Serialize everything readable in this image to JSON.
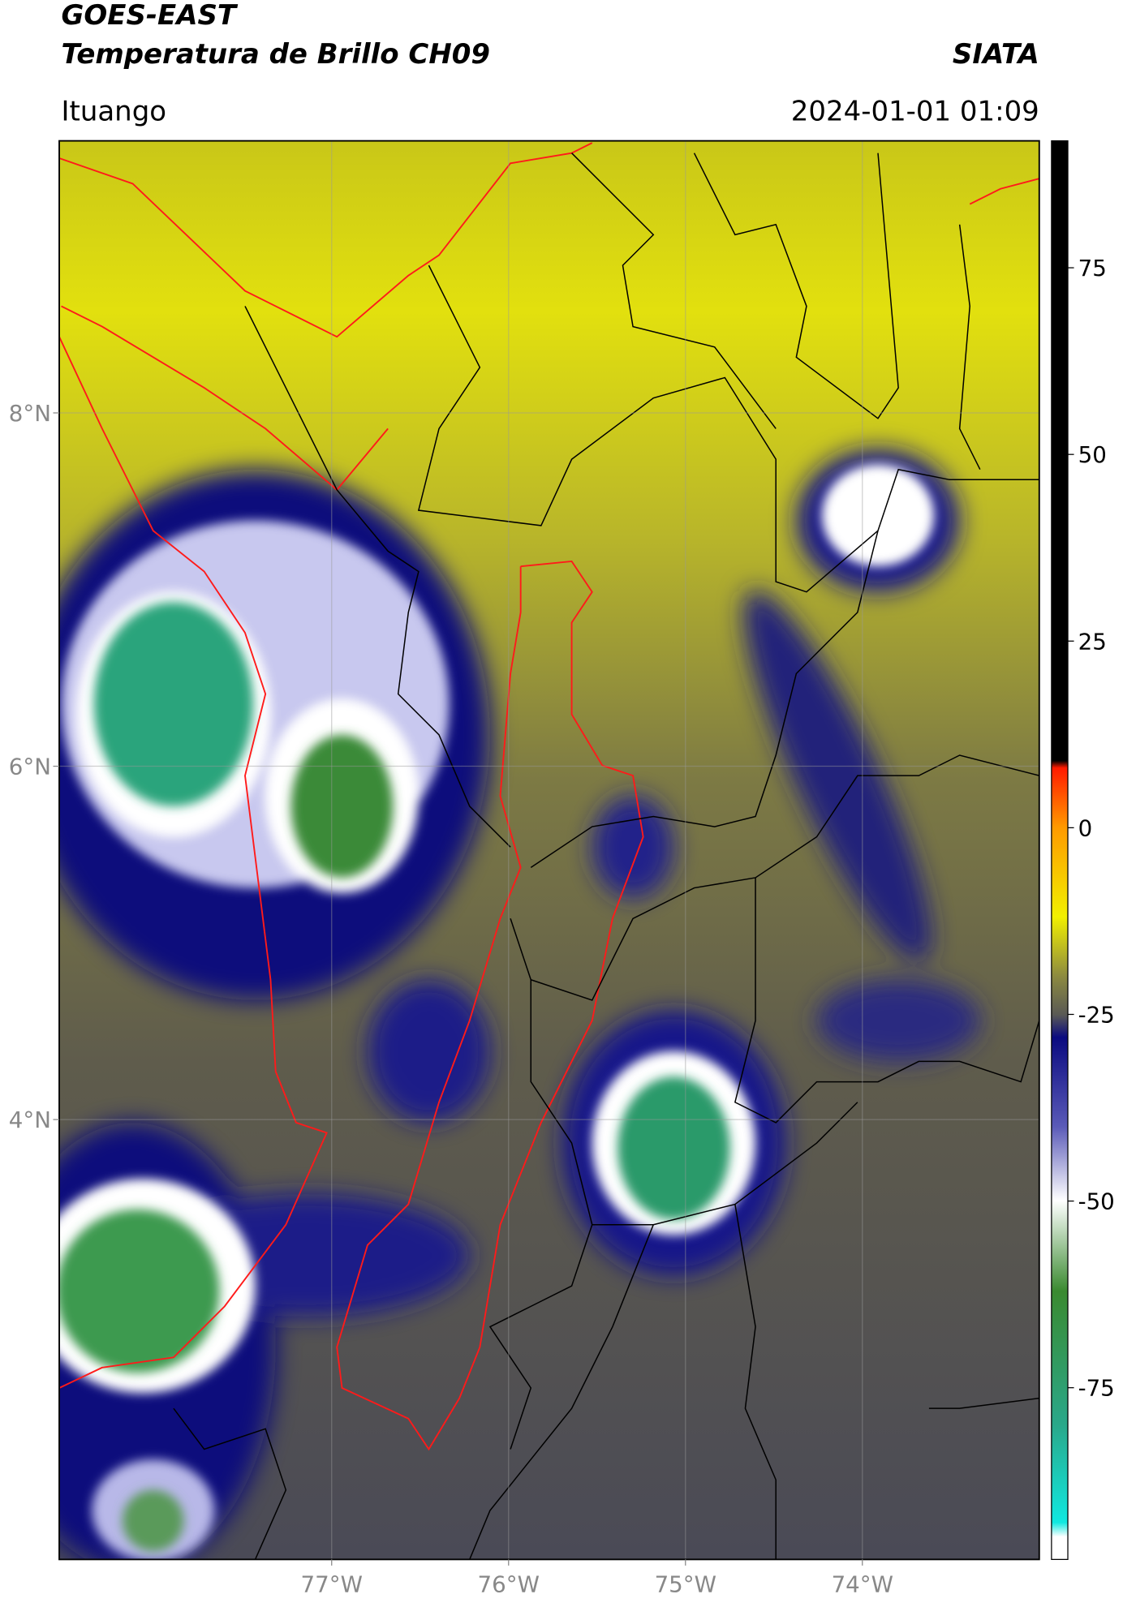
{
  "map": {
    "title": "GOES-EAST",
    "subtitle": "Temperatura de Brillo CH09",
    "brand": "SIATA",
    "location": "Ituango",
    "datetime": "2024-01-01 01:09",
    "xlim": [
      -78.54,
      -73.0
    ],
    "ylim": [
      1.51,
      9.54
    ],
    "xticks": [
      {
        "value": -77,
        "label": "77°W"
      },
      {
        "value": -76,
        "label": "76°W"
      },
      {
        "value": -75,
        "label": "75°W"
      },
      {
        "value": -74,
        "label": "74°W"
      }
    ],
    "yticks": [
      {
        "value": 8,
        "label": "8°N"
      },
      {
        "value": 6,
        "label": "6°N"
      },
      {
        "value": 4,
        "label": "4°N"
      }
    ],
    "grid": true,
    "colorbar": {
      "clim": [
        -98,
        92
      ],
      "ticks": [
        75,
        50,
        25,
        0,
        -25,
        -50,
        -75
      ]
    }
  }
}
